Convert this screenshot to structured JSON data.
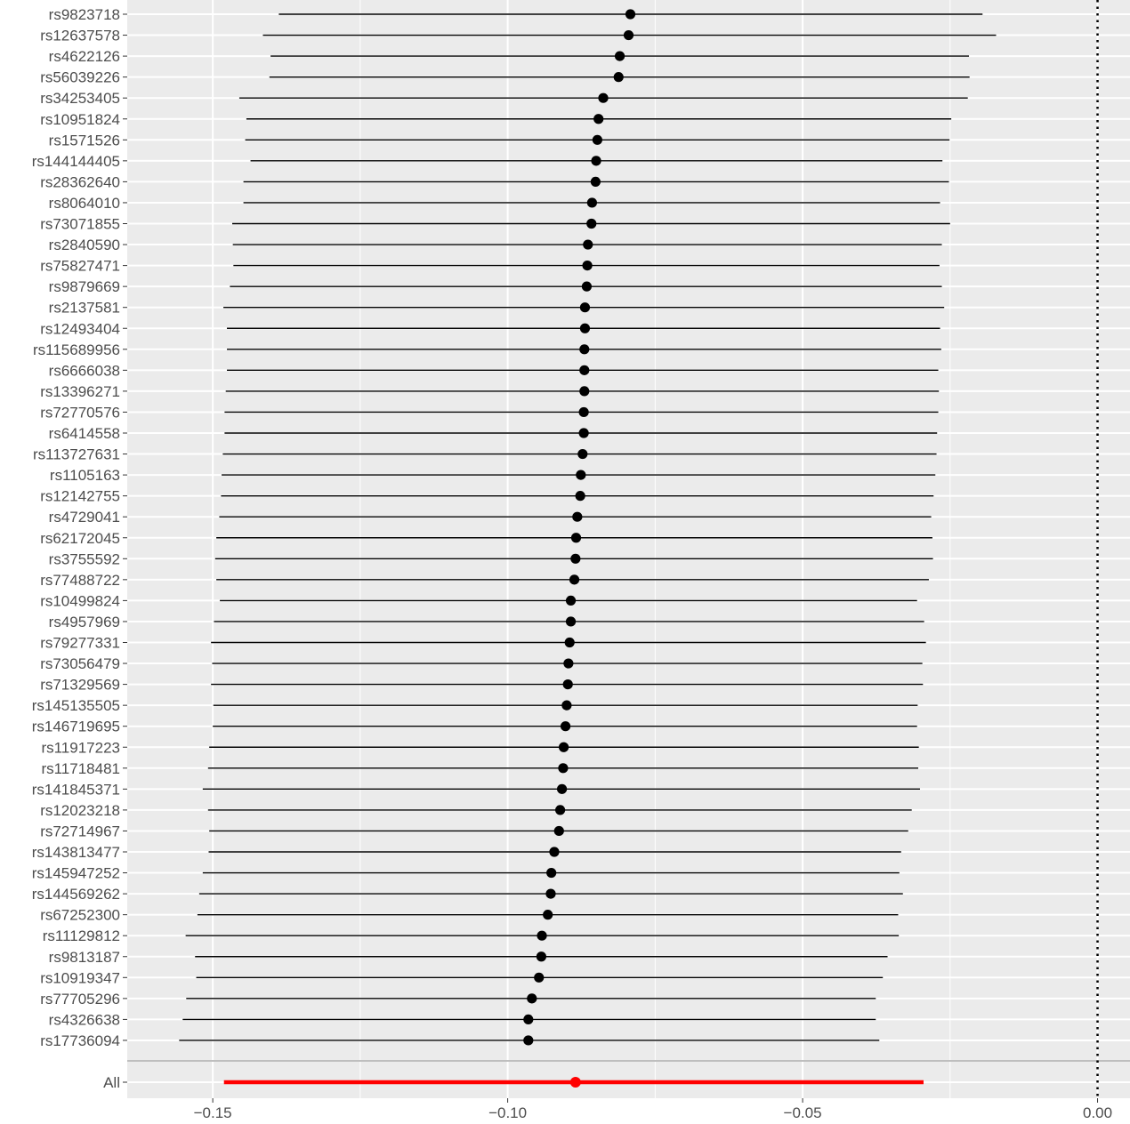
{
  "chart_data": {
    "type": "scatter",
    "subtype": "forest-plot",
    "title": "",
    "xlabel": "",
    "ylabel": "",
    "xlim": [
      -0.1645,
      0.0055
    ],
    "x_ticks": [
      -0.15,
      -0.1,
      -0.05,
      0.0
    ],
    "x_tick_labels": [
      "−0.15",
      "−0.10",
      "−0.05",
      "0.00"
    ],
    "reference_line": {
      "x": 0.0,
      "style": "dotted"
    },
    "grid": true,
    "background": "#ebebeb",
    "colors": {
      "point": "#000000",
      "summary": "#ff0000",
      "grid": "#ffffff",
      "separator": "#bebebe",
      "tick_text": "#4d4d4d"
    },
    "rows": [
      {
        "label": "rs9823718",
        "estimate": -0.0792,
        "lower": -0.1388,
        "upper": -0.0195
      },
      {
        "label": "rs12637578",
        "estimate": -0.0795,
        "lower": -0.1415,
        "upper": -0.0172
      },
      {
        "label": "rs4622126",
        "estimate": -0.081,
        "lower": -0.1402,
        "upper": -0.0218
      },
      {
        "label": "rs56039226",
        "estimate": -0.0812,
        "lower": -0.1404,
        "upper": -0.0217
      },
      {
        "label": "rs34253405",
        "estimate": -0.0838,
        "lower": -0.1455,
        "upper": -0.022
      },
      {
        "label": "rs10951824",
        "estimate": -0.0846,
        "lower": -0.1443,
        "upper": -0.0248
      },
      {
        "label": "rs1571526",
        "estimate": -0.0848,
        "lower": -0.1445,
        "upper": -0.0251
      },
      {
        "label": "rs144144405",
        "estimate": -0.085,
        "lower": -0.1436,
        "upper": -0.0263
      },
      {
        "label": "rs28362640",
        "estimate": -0.0851,
        "lower": -0.1448,
        "upper": -0.0252
      },
      {
        "label": "rs8064010",
        "estimate": -0.0857,
        "lower": -0.1448,
        "upper": -0.0267
      },
      {
        "label": "rs73071855",
        "estimate": -0.0858,
        "lower": -0.1467,
        "upper": -0.025
      },
      {
        "label": "rs2840590",
        "estimate": -0.0864,
        "lower": -0.1466,
        "upper": -0.0264
      },
      {
        "label": "rs75827471",
        "estimate": -0.0865,
        "lower": -0.1465,
        "upper": -0.0268
      },
      {
        "label": "rs9879669",
        "estimate": -0.0866,
        "lower": -0.1471,
        "upper": -0.0264
      },
      {
        "label": "rs2137581",
        "estimate": -0.0869,
        "lower": -0.1482,
        "upper": -0.026
      },
      {
        "label": "rs12493404",
        "estimate": -0.0869,
        "lower": -0.1476,
        "upper": -0.0267
      },
      {
        "label": "rs115689956",
        "estimate": -0.087,
        "lower": -0.1476,
        "upper": -0.0265
      },
      {
        "label": "rs6666038",
        "estimate": -0.087,
        "lower": -0.1476,
        "upper": -0.027
      },
      {
        "label": "rs13396271",
        "estimate": -0.087,
        "lower": -0.1478,
        "upper": -0.0269
      },
      {
        "label": "rs72770576",
        "estimate": -0.0871,
        "lower": -0.148,
        "upper": -0.027
      },
      {
        "label": "rs6414558",
        "estimate": -0.0871,
        "lower": -0.148,
        "upper": -0.0272
      },
      {
        "label": "rs113727631",
        "estimate": -0.0873,
        "lower": -0.1483,
        "upper": -0.0273
      },
      {
        "label": "rs1105163",
        "estimate": -0.0876,
        "lower": -0.1485,
        "upper": -0.0275
      },
      {
        "label": "rs12142755",
        "estimate": -0.0877,
        "lower": -0.1486,
        "upper": -0.0278
      },
      {
        "label": "rs4729041",
        "estimate": -0.0882,
        "lower": -0.1489,
        "upper": -0.0282
      },
      {
        "label": "rs62172045",
        "estimate": -0.0884,
        "lower": -0.1494,
        "upper": -0.028
      },
      {
        "label": "rs3755592",
        "estimate": -0.0885,
        "lower": -0.1496,
        "upper": -0.0279
      },
      {
        "label": "rs77488722",
        "estimate": -0.0887,
        "lower": -0.1494,
        "upper": -0.0286
      },
      {
        "label": "rs10499824",
        "estimate": -0.0893,
        "lower": -0.1488,
        "upper": -0.0306
      },
      {
        "label": "rs4957969",
        "estimate": -0.0893,
        "lower": -0.1498,
        "upper": -0.0294
      },
      {
        "label": "rs79277331",
        "estimate": -0.0895,
        "lower": -0.1503,
        "upper": -0.0291
      },
      {
        "label": "rs73056479",
        "estimate": -0.0897,
        "lower": -0.1501,
        "upper": -0.0297
      },
      {
        "label": "rs71329569",
        "estimate": -0.0898,
        "lower": -0.1503,
        "upper": -0.0296
      },
      {
        "label": "rs145135505",
        "estimate": -0.09,
        "lower": -0.1499,
        "upper": -0.0305
      },
      {
        "label": "rs146719695",
        "estimate": -0.0902,
        "lower": -0.15,
        "upper": -0.0306
      },
      {
        "label": "rs11917223",
        "estimate": -0.0905,
        "lower": -0.1506,
        "upper": -0.0303
      },
      {
        "label": "rs11718481",
        "estimate": -0.0906,
        "lower": -0.1508,
        "upper": -0.0304
      },
      {
        "label": "rs141845371",
        "estimate": -0.0908,
        "lower": -0.1517,
        "upper": -0.0301
      },
      {
        "label": "rs12023218",
        "estimate": -0.0911,
        "lower": -0.1508,
        "upper": -0.0315
      },
      {
        "label": "rs72714967",
        "estimate": -0.0913,
        "lower": -0.1506,
        "upper": -0.0321
      },
      {
        "label": "rs143813477",
        "estimate": -0.0921,
        "lower": -0.1507,
        "upper": -0.0333
      },
      {
        "label": "rs145947252",
        "estimate": -0.0926,
        "lower": -0.1517,
        "upper": -0.0336
      },
      {
        "label": "rs144569262",
        "estimate": -0.0927,
        "lower": -0.1523,
        "upper": -0.033
      },
      {
        "label": "rs67252300",
        "estimate": -0.0932,
        "lower": -0.1526,
        "upper": -0.0338
      },
      {
        "label": "rs11129812",
        "estimate": -0.0942,
        "lower": -0.1546,
        "upper": -0.0337
      },
      {
        "label": "rs9813187",
        "estimate": -0.0943,
        "lower": -0.153,
        "upper": -0.0356
      },
      {
        "label": "rs10919347",
        "estimate": -0.0947,
        "lower": -0.1528,
        "upper": -0.0364
      },
      {
        "label": "rs77705296",
        "estimate": -0.0959,
        "lower": -0.1545,
        "upper": -0.0376
      },
      {
        "label": "rs4326638",
        "estimate": -0.0965,
        "lower": -0.1551,
        "upper": -0.0376
      },
      {
        "label": "rs17736094",
        "estimate": -0.0965,
        "lower": -0.1557,
        "upper": -0.037
      }
    ],
    "summary": {
      "label": "All",
      "estimate": -0.0885,
      "lower": -0.1481,
      "upper": -0.0295
    }
  }
}
